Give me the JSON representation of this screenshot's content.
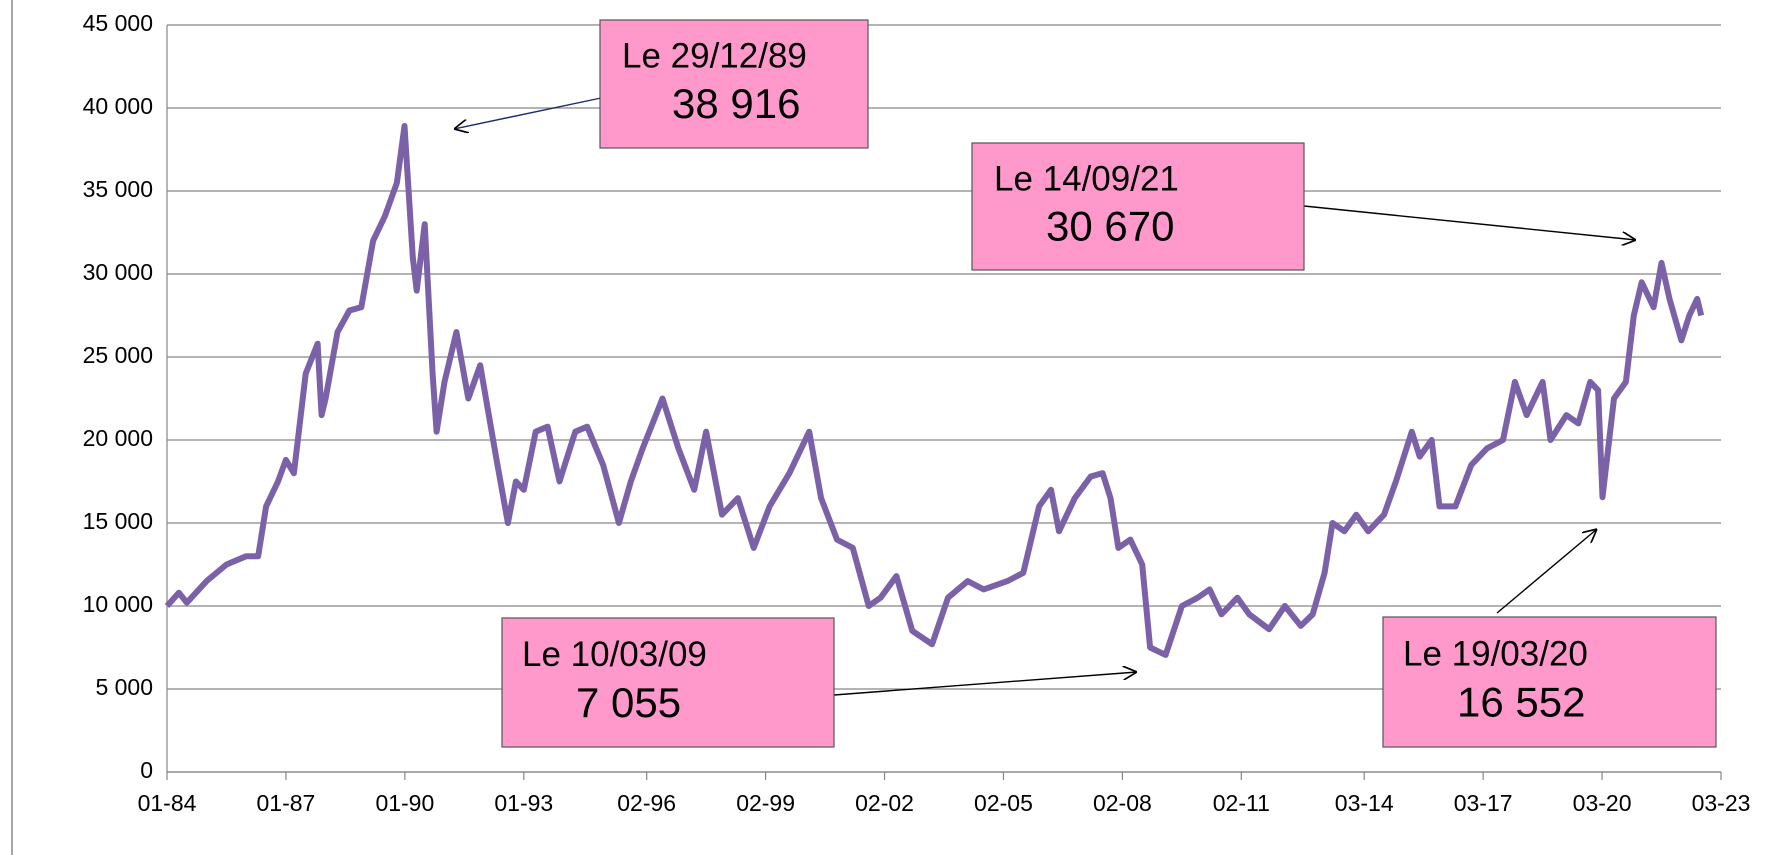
{
  "chart_data": {
    "type": "line",
    "x": [
      1984.0,
      1984.3,
      1984.5,
      1985.0,
      1985.5,
      1986.0,
      1986.3,
      1986.5,
      1986.8,
      1987.0,
      1987.2,
      1987.5,
      1987.8,
      1987.9,
      1988.0,
      1988.3,
      1988.6,
      1988.9,
      1989.2,
      1989.5,
      1989.8,
      1989.99,
      1990.2,
      1990.3,
      1990.5,
      1990.7,
      1990.8,
      1991.0,
      1991.3,
      1991.6,
      1991.9,
      1992.3,
      1992.6,
      1992.8,
      1993.0,
      1993.3,
      1993.6,
      1993.9,
      1994.3,
      1994.6,
      1995.0,
      1995.4,
      1995.7,
      1996.0,
      1996.5,
      1996.9,
      1997.3,
      1997.6,
      1998.0,
      1998.4,
      1998.8,
      1999.2,
      1999.7,
      2000.2,
      2000.5,
      2000.9,
      2001.3,
      2001.7,
      2002.0,
      2002.4,
      2002.8,
      2003.3,
      2003.7,
      2004.2,
      2004.6,
      2005.2,
      2005.6,
      2006.0,
      2006.3,
      2006.5,
      2006.9,
      2007.3,
      2007.6,
      2007.8,
      2008.0,
      2008.3,
      2008.6,
      2008.8,
      2009.19,
      2009.6,
      2010.0,
      2010.3,
      2010.6,
      2011.0,
      2011.3,
      2011.8,
      2012.2,
      2012.6,
      2012.9,
      2013.2,
      2013.4,
      2013.7,
      2014.0,
      2014.3,
      2014.7,
      2015.0,
      2015.4,
      2015.6,
      2015.9,
      2016.1,
      2016.5,
      2016.9,
      2017.3,
      2017.7,
      2018.0,
      2018.3,
      2018.7,
      2018.9,
      2019.3,
      2019.6,
      2019.9,
      2020.1,
      2020.21,
      2020.5,
      2020.8,
      2021.0,
      2021.2,
      2021.5,
      2021.7,
      2021.9,
      2022.2,
      2022.4,
      2022.6,
      2022.7
    ],
    "series": [
      {
        "color": "#7b62a8",
        "values": [
          10000,
          10800,
          10200,
          11500,
          12500,
          13000,
          13000,
          16000,
          17500,
          18800,
          18000,
          24000,
          25800,
          21500,
          22500,
          26500,
          27800,
          28000,
          32000,
          33500,
          35500,
          38916,
          31000,
          29000,
          33000,
          24000,
          20500,
          23500,
          26500,
          22500,
          24500,
          19000,
          15000,
          17500,
          17000,
          20500,
          20800,
          17500,
          20500,
          20800,
          18500,
          15000,
          17500,
          19500,
          22500,
          19500,
          17000,
          20500,
          15500,
          16500,
          13500,
          16000,
          18000,
          20500,
          16500,
          14000,
          13500,
          10000,
          10500,
          11800,
          8500,
          7700,
          10500,
          11500,
          11000,
          11500,
          12000,
          16000,
          17000,
          14500,
          16500,
          17800,
          18000,
          16500,
          13500,
          14000,
          12500,
          7500,
          7055,
          10000,
          10500,
          11000,
          9500,
          10500,
          9500,
          8600,
          10000,
          8800,
          9500,
          12000,
          15000,
          14500,
          15500,
          14500,
          15500,
          17500,
          20500,
          19000,
          20000,
          16000,
          16000,
          18500,
          19500,
          20000,
          23500,
          21500,
          23500,
          20000,
          21500,
          21000,
          23500,
          23000,
          16552,
          22500,
          23500,
          27500,
          29500,
          28000,
          30670,
          28500,
          26000,
          27500,
          28500,
          27500
        ]
      }
    ],
    "xlim": [
      1984.0,
      2023.2
    ],
    "xticks": [
      {
        "value": 1984.0,
        "label": "01-84"
      },
      {
        "value": 1987.0,
        "label": "01-87"
      },
      {
        "value": 1990.0,
        "label": "01-90"
      },
      {
        "value": 1993.0,
        "label": "01-93"
      },
      {
        "value": 1996.1,
        "label": "02-96"
      },
      {
        "value": 1999.1,
        "label": "02-99"
      },
      {
        "value": 2002.1,
        "label": "02-02"
      },
      {
        "value": 2005.1,
        "label": "02-05"
      },
      {
        "value": 2008.1,
        "label": "02-08"
      },
      {
        "value": 2011.1,
        "label": "02-11"
      },
      {
        "value": 2014.2,
        "label": "03-14"
      },
      {
        "value": 2017.2,
        "label": "03-17"
      },
      {
        "value": 2020.2,
        "label": "03-20"
      },
      {
        "value": 2023.2,
        "label": "03-23"
      }
    ],
    "ylim": [
      0,
      45000
    ],
    "yticks": [
      0,
      {
        "value": 5000,
        "label": "5 000"
      },
      {
        "value": 10000,
        "label": "10 000"
      },
      {
        "value": 15000,
        "label": "15 000"
      },
      {
        "value": 20000,
        "label": "20 000"
      },
      {
        "value": 25000,
        "label": "25 000"
      },
      {
        "value": 30000,
        "label": "30 000"
      },
      {
        "value": 35000,
        "label": "35 000"
      },
      {
        "value": 40000,
        "label": "40 000"
      },
      {
        "value": 45000,
        "label": "45 000"
      }
    ],
    "grid": true,
    "annotations": [
      {
        "date": "Le 29/12/89",
        "label": "38 916"
      },
      {
        "date": "Le 14/09/21",
        "label": "30 670"
      },
      {
        "date": "Le 10/03/09",
        "label": "7 055"
      },
      {
        "date": "Le 19/03/20",
        "label": "16 552"
      }
    ]
  }
}
